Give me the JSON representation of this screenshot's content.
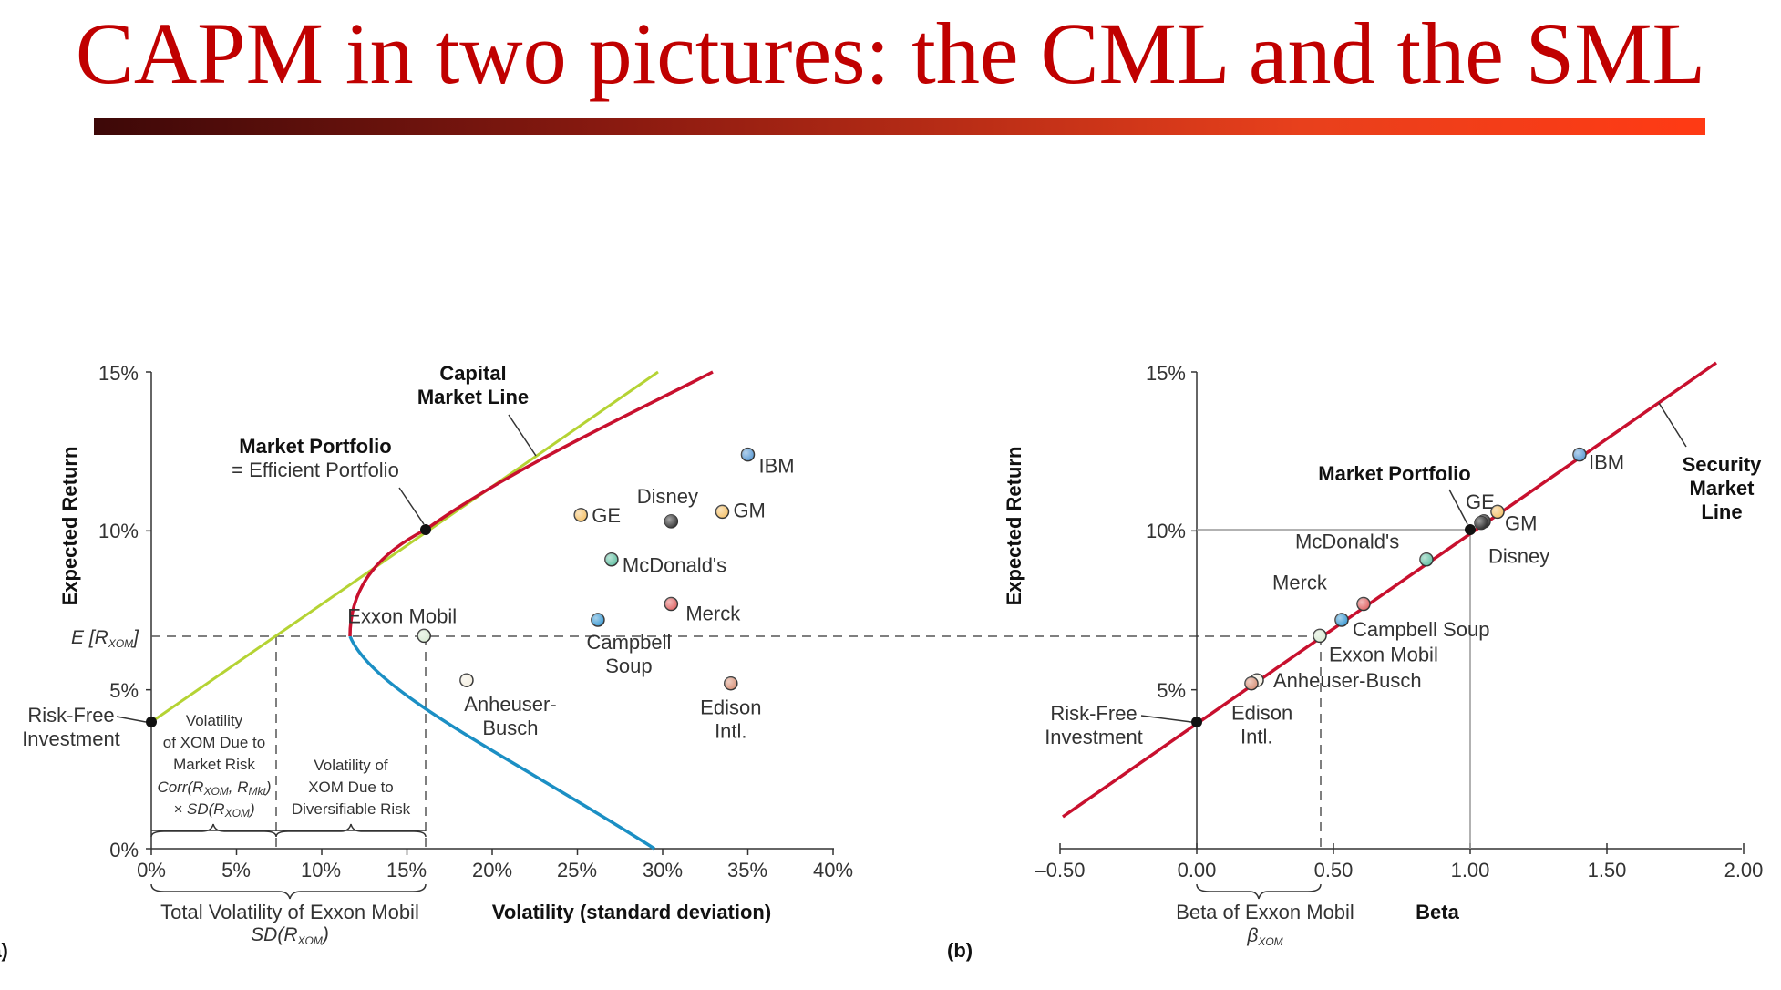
{
  "slide": {
    "title": "CAPM in two pictures: the CML and the SML",
    "title_color": "#c00000",
    "bar_gradient": [
      "#3d0808",
      "#8b1a10",
      "#e8401c",
      "#ff3a14"
    ]
  },
  "colors": {
    "cml": "#c8102e",
    "frontier_lower": "#1b8fc4",
    "tangent": "#b5d334",
    "axis": "#333333",
    "dashed": "#555555"
  },
  "panel_a": {
    "tag": "(a)",
    "ylabel": "Expected Return",
    "xlabel": "Volatility (standard deviation)",
    "y_ticks": [
      "0%",
      "5%",
      "10%",
      "15%"
    ],
    "x_ticks": [
      "0%",
      "5%",
      "10%",
      "15%",
      "20%",
      "25%",
      "30%",
      "35%",
      "40%"
    ],
    "e_r_xom": {
      "main": "E [R",
      "sub": "XOM",
      "close": "]"
    },
    "risk_free_label": [
      "Risk-Free",
      "Investment"
    ],
    "cml_label": [
      "Capital",
      "Market Line"
    ],
    "market_portfolio_label": "Market Portfolio",
    "efficient_label": "= Efficient Portfolio",
    "market_risk_box": {
      "lines": [
        "Volatility",
        "of XOM Due to",
        "Market Risk"
      ],
      "corr_main": "Corr(R",
      "corr_sub1": "XOM",
      "corr_mid": ", R",
      "corr_sub2": "Mkt",
      "corr_close": ")",
      "sd_main": "× SD(R",
      "sd_sub": "XOM",
      "sd_close": ")"
    },
    "diversifiable_box": [
      "Volatility of",
      "XOM Due to",
      "Diversifiable Risk"
    ],
    "total_vol_label": "Total Volatility of Exxon Mobil",
    "total_vol_formula": {
      "main": "SD(R",
      "sub": "XOM",
      "close": ")"
    }
  },
  "panel_b": {
    "tag": "(b)",
    "ylabel": "Expected Return",
    "xlabel": "Beta",
    "y_ticks": [
      "5%",
      "10%",
      "15%"
    ],
    "x_ticks": [
      "–0.50",
      "0.00",
      "0.50",
      "1.00",
      "1.50",
      "2.00"
    ],
    "risk_free_label": [
      "Risk-Free",
      "Investment"
    ],
    "sml_label": [
      "Security",
      "Market",
      "Line"
    ],
    "market_portfolio_label": "Market Portfolio",
    "beta_xom_label": "Beta of Exxon Mobil",
    "beta_xom_formula": {
      "main": "β",
      "sub": "XOM"
    }
  },
  "chart_data": [
    {
      "type": "scatter",
      "panel": "(a)",
      "xlabel": "Volatility (standard deviation)",
      "ylabel": "Expected Return",
      "xlim": [
        0,
        40
      ],
      "ylim": [
        0,
        15
      ],
      "risk_free_rate": 4,
      "market_portfolio": {
        "x": 16,
        "y": 10
      },
      "exxon_mobil": {
        "x": 16,
        "y": 6.7
      },
      "lines": [
        {
          "name": "Capital Market Line",
          "from": [
            0,
            4
          ],
          "to": [
            16,
            10
          ],
          "color": "#c8102e"
        },
        {
          "name": "efficient frontier",
          "vertex": [
            11.6,
            6.7
          ],
          "through": [
            16,
            10
          ],
          "color": "#c8102e"
        }
      ],
      "points": [
        {
          "label": "IBM",
          "x": 35,
          "y": 12.4,
          "color": "#5b9bd5"
        },
        {
          "label": "GE",
          "x": 25.2,
          "y": 10.5,
          "color": "#f5c26b"
        },
        {
          "label": "Disney",
          "x": 30.5,
          "y": 10.3,
          "color": "#3a3a3a"
        },
        {
          "label": "GM",
          "x": 33.5,
          "y": 10.6,
          "color": "#f5c26b"
        },
        {
          "label": "McDonald's",
          "x": 27,
          "y": 9.1,
          "color": "#66c2a5"
        },
        {
          "label": "Merck",
          "x": 30.5,
          "y": 7.7,
          "color": "#e06666"
        },
        {
          "label": "Exxon Mobil",
          "x": 16,
          "y": 6.7,
          "color": "#d9ead3"
        },
        {
          "label": "Campbell Soup",
          "x": 26.2,
          "y": 7.2,
          "color": "#3d9bd4"
        },
        {
          "label": "Anheuser-Busch",
          "x": 18.5,
          "y": 5.3,
          "color": "#f4efe1"
        },
        {
          "label": "Edison Intl.",
          "x": 34,
          "y": 5.2,
          "color": "#d9937a"
        }
      ]
    },
    {
      "type": "scatter",
      "panel": "(b)",
      "xlabel": "Beta",
      "ylabel": "Expected Return",
      "xlim": [
        -0.5,
        2.0
      ],
      "ylim": [
        0,
        15
      ],
      "risk_free_rate": 4,
      "market_portfolio": {
        "x": 1.0,
        "y": 10
      },
      "lines": [
        {
          "name": "Security Market Line",
          "from": [
            -0.5,
            1
          ],
          "to": [
            1.9,
            15.4
          ],
          "color": "#c8102e"
        }
      ],
      "points": [
        {
          "label": "IBM",
          "x": 1.4,
          "y": 12.4,
          "color": "#5b9bd5"
        },
        {
          "label": "GE",
          "x": 1.05,
          "y": 10.3,
          "color": "#3a3a3a"
        },
        {
          "label": "GM",
          "x": 1.1,
          "y": 10.6,
          "color": "#f5c26b"
        },
        {
          "label": "Disney",
          "x": 1.04,
          "y": 10.25,
          "color": "#2a2a2a"
        },
        {
          "label": "McDonald's",
          "x": 0.84,
          "y": 9.1,
          "color": "#66c2a5"
        },
        {
          "label": "Merck",
          "x": 0.61,
          "y": 7.7,
          "color": "#e06666"
        },
        {
          "label": "Campbell Soup",
          "x": 0.53,
          "y": 7.2,
          "color": "#3d9bd4"
        },
        {
          "label": "Exxon Mobil",
          "x": 0.45,
          "y": 6.7,
          "color": "#d9ead3"
        },
        {
          "label": "Anheuser-Busch",
          "x": 0.22,
          "y": 5.3,
          "color": "#f4efe1"
        },
        {
          "label": "Edison Intl.",
          "x": 0.2,
          "y": 5.2,
          "color": "#d9937a"
        }
      ]
    }
  ]
}
